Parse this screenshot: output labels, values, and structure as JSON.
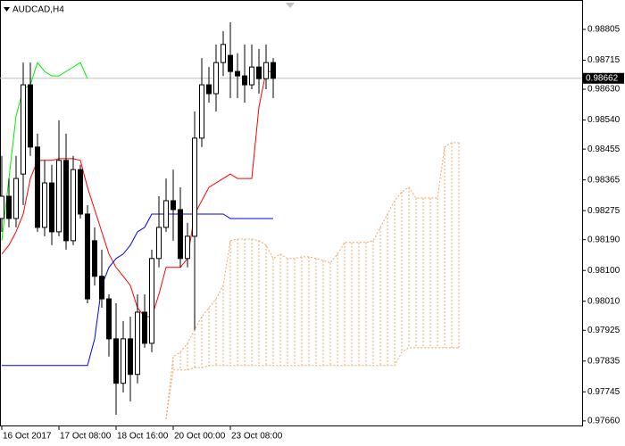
{
  "chart_data": {
    "type": "candlestick",
    "title": "AUDCAD,H4",
    "categories": [
      "16 Oct 2017",
      null,
      null,
      null,
      null,
      null,
      null,
      null,
      "17 Oct 08:00",
      null,
      null,
      null,
      null,
      null,
      null,
      null,
      "18 Oct 16:00",
      null,
      null,
      null,
      null,
      null,
      null,
      null,
      "20 Oct 00:00",
      null,
      null,
      null,
      null,
      null,
      null,
      null,
      "23 Oct 08:00",
      null,
      null,
      null,
      null,
      null,
      null,
      null,
      null,
      null,
      null,
      null,
      null,
      null,
      null,
      null,
      null,
      null,
      null,
      null,
      null,
      null,
      null,
      null,
      null,
      null,
      null,
      null,
      null,
      null,
      null,
      null,
      null
    ],
    "open": [
      0.98252,
      0.98317,
      0.98252,
      0.98382,
      0.98643,
      0.98461,
      0.98226,
      0.98356,
      0.98213,
      0.98422,
      0.98187,
      0.98395,
      0.98265,
      0.98187,
      0.98083,
      0.98017,
      0.979,
      0.9777,
      0.979,
      0.97796,
      0.97978,
      0.97887,
      0.98135,
      0.98226,
      0.98304,
      0.98278,
      0.98135,
      0.982,
      0.98487,
      0.98643,
      0.98617,
      0.98708,
      0.98729,
      0.98682,
      0.98669,
      0.98643,
      0.98695,
      0.98661,
      0.98708,
      null,
      null,
      null,
      null,
      null,
      null,
      null,
      null,
      null,
      null,
      null,
      null,
      null,
      null,
      null,
      null,
      null,
      null,
      null,
      null,
      null,
      null,
      null,
      null,
      null,
      null
    ],
    "high": [
      0.98435,
      0.98369,
      0.98435,
      0.98708,
      0.98708,
      0.985,
      0.98422,
      0.98409,
      0.98539,
      0.985,
      0.98435,
      0.98409,
      0.98291,
      0.98226,
      0.98161,
      0.9803,
      0.98004,
      0.97952,
      0.97965,
      0.9803,
      0.9803,
      0.98161,
      0.98317,
      0.98369,
      0.98395,
      0.98343,
      0.98239,
      0.98565,
      0.98721,
      0.98695,
      0.98761,
      0.988,
      0.98826,
      0.98735,
      0.98761,
      0.98761,
      0.98748,
      0.98761,
      0.98721,
      null,
      null,
      null,
      null,
      null,
      null,
      null,
      null,
      null,
      null,
      null,
      null,
      null,
      null,
      null,
      null,
      null,
      null,
      null,
      null,
      null,
      null,
      null,
      null,
      null,
      null
    ],
    "low": [
      0.98213,
      0.98226,
      0.98226,
      0.98291,
      0.98435,
      0.98213,
      0.982,
      0.98174,
      0.982,
      0.98161,
      0.98174,
      0.98252,
      0.98004,
      0.98056,
      0.97991,
      0.97848,
      0.97678,
      0.97743,
      0.97717,
      0.9777,
      0.97874,
      0.97861,
      0.98109,
      0.98213,
      0.98187,
      0.98109,
      0.98109,
      0.97926,
      0.98461,
      0.98591,
      0.98565,
      0.98669,
      0.98604,
      0.98604,
      0.98591,
      0.9863,
      0.98617,
      0.9863,
      0.98604,
      null,
      null,
      null,
      null,
      null,
      null,
      null,
      null,
      null,
      null,
      null,
      null,
      null,
      null,
      null,
      null,
      null,
      null,
      null,
      null,
      null,
      null,
      null,
      null,
      null,
      null
    ],
    "close": [
      0.98317,
      0.98252,
      0.98369,
      0.98643,
      0.98461,
      0.98226,
      0.98356,
      0.98213,
      0.98422,
      0.98187,
      0.98395,
      0.98265,
      0.98017,
      0.98083,
      0.98017,
      0.979,
      0.9777,
      0.979,
      0.97796,
      0.97978,
      0.97887,
      0.98135,
      0.98226,
      0.98304,
      0.98278,
      0.98135,
      0.982,
      0.98487,
      0.98643,
      0.98617,
      0.98708,
      0.98761,
      0.98682,
      0.98669,
      0.98643,
      0.98695,
      0.98661,
      0.98708,
      0.98662,
      null,
      null,
      null,
      null,
      null,
      null,
      null,
      null,
      null,
      null,
      null,
      null,
      null,
      null,
      null,
      null,
      null,
      null,
      null,
      null,
      null,
      null,
      null,
      null,
      null,
      null
    ],
    "series": [
      {
        "color": "#ff0000",
        "values": [
          0.98148,
          0.98174,
          0.98213,
          0.98265,
          0.98369,
          0.98422,
          0.98422,
          0.98422,
          0.98427,
          0.98427,
          0.98427,
          0.98422,
          0.98343,
          0.98278,
          0.98213,
          0.98148,
          0.98109,
          0.98083,
          0.98056,
          0.97991,
          0.97965,
          0.97965,
          0.9803,
          0.98109,
          0.98109,
          0.98109,
          0.98135,
          0.98265,
          0.98304,
          0.98343,
          0.98356,
          0.98369,
          0.98382,
          0.98369,
          0.98369,
          0.98369,
          0.98578,
          0.98682,
          0.98682,
          null,
          null,
          null,
          null,
          null,
          null,
          null,
          null,
          null,
          null,
          null,
          null,
          null,
          null,
          null,
          null,
          null,
          null,
          null,
          null,
          null,
          null,
          null,
          null,
          null,
          null
        ]
      },
      {
        "color": "#0000ff",
        "values": [
          0.97822,
          0.97822,
          0.97822,
          0.97822,
          0.97822,
          0.97822,
          0.97822,
          0.97822,
          0.97822,
          0.97822,
          0.97822,
          0.97822,
          0.97822,
          0.979,
          0.98056,
          0.98109,
          0.98135,
          0.98148,
          0.98174,
          0.98213,
          0.98226,
          0.98265,
          0.98265,
          0.98265,
          0.98265,
          0.98265,
          0.98265,
          0.98265,
          0.98265,
          0.98265,
          0.98265,
          0.98265,
          0.98252,
          0.98252,
          0.98252,
          0.98252,
          0.98252,
          0.98252,
          0.98252,
          null,
          null,
          null,
          null,
          null,
          null,
          null,
          null,
          null,
          null,
          null,
          null,
          null,
          null,
          null,
          null,
          null,
          null,
          null,
          null,
          null,
          null,
          null,
          null,
          null,
          null
        ]
      },
      {
        "color": "#00ee00",
        "values": [
          0.98187,
          0.98369,
          0.98552,
          0.9863,
          0.98643,
          0.98708,
          0.98682,
          0.98669,
          0.98669,
          0.98682,
          0.98695,
          0.98708,
          0.98661,
          null,
          null,
          null,
          null,
          null,
          null,
          null,
          null,
          null,
          null,
          null,
          null,
          null,
          null,
          null,
          null,
          null,
          null,
          null,
          null,
          null,
          null,
          null,
          null,
          null,
          null,
          null,
          null,
          null,
          null,
          null,
          null,
          null,
          null,
          null,
          null,
          null,
          null,
          null,
          null,
          null,
          null,
          null,
          null,
          null,
          null,
          null,
          null,
          null,
          null,
          null,
          null
        ]
      }
    ],
    "cloud": {
      "color": "#f4a460",
      "upper": [
        null,
        null,
        null,
        null,
        null,
        null,
        null,
        null,
        null,
        null,
        null,
        null,
        null,
        null,
        null,
        null,
        null,
        null,
        null,
        null,
        null,
        null,
        null,
        0.97665,
        0.97848,
        0.97861,
        0.97887,
        0.97926,
        0.97965,
        0.97991,
        0.98017,
        0.98056,
        0.98187,
        0.98192,
        0.98192,
        0.98192,
        0.98187,
        0.98174,
        0.98135,
        0.98148,
        0.98135,
        0.98135,
        0.9814,
        0.9814,
        0.98135,
        0.98129,
        0.98122,
        0.98148,
        0.98182,
        0.98182,
        0.98182,
        0.98182,
        0.98187,
        0.98226,
        0.98265,
        0.98304,
        0.9833,
        0.98343,
        0.98312,
        0.98312,
        0.98312,
        0.98312,
        0.98461,
        0.98474,
        0.98474
      ],
      "lower": [
        null,
        null,
        null,
        null,
        null,
        null,
        null,
        null,
        null,
        null,
        null,
        null,
        null,
        null,
        null,
        null,
        null,
        null,
        null,
        null,
        null,
        null,
        null,
        0.97665,
        0.97809,
        0.97809,
        0.97809,
        0.97816,
        0.97816,
        0.97822,
        0.97822,
        0.97822,
        0.97822,
        0.97822,
        0.97822,
        0.97822,
        0.97822,
        0.97822,
        0.97822,
        0.97822,
        0.97822,
        0.97822,
        0.97822,
        0.97822,
        0.97822,
        0.97822,
        0.97822,
        0.97822,
        0.97822,
        0.97822,
        0.97822,
        0.97822,
        0.97822,
        0.97822,
        0.97822,
        0.97822,
        0.97861,
        0.97874,
        0.97874,
        0.97874,
        0.97874,
        0.97874,
        0.97874,
        0.97874,
        0.97874
      ]
    },
    "last_price": 0.98662,
    "ylim": [
      0.97644,
      0.98891
    ],
    "yticks": [
      0.98805,
      0.98715,
      {
        "value": 0.9863,
        "label": "0.98630"
      },
      {
        "value": 0.9854,
        "label": "0.98540"
      },
      0.98455,
      0.98365,
      0.98275,
      {
        "value": 0.9819,
        "label": "0.98190"
      },
      {
        "value": 0.981,
        "label": "0.98100"
      },
      {
        "value": 0.9801,
        "label": "0.98010"
      },
      0.97925,
      0.97835,
      0.97745,
      {
        "value": 0.9766,
        "label": "0.97660"
      }
    ]
  }
}
